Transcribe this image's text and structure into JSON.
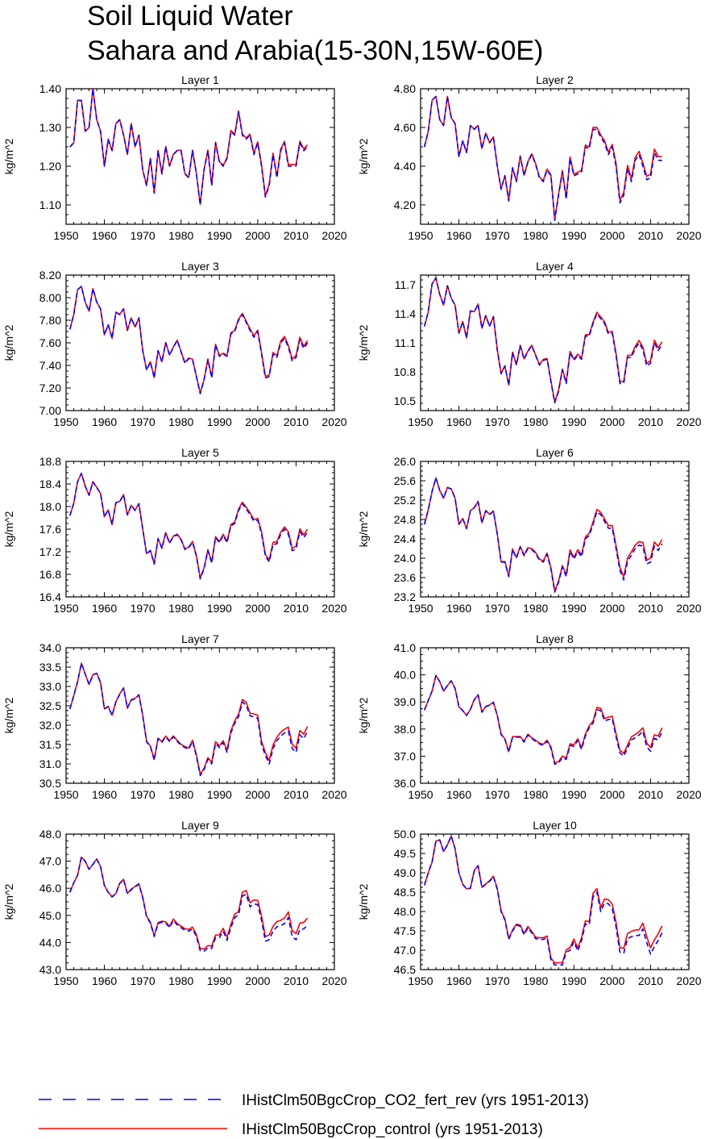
{
  "title_line1": "Soil Liquid Water",
  "title_line2": "Sahara and Arabia(15-30N,15W-60E)",
  "legend": {
    "items": [
      {
        "label": "IHistClm50BgcCrop_CO2_fert_rev (yrs 1951-2013)",
        "color": "#0000ff",
        "style": "dashed"
      },
      {
        "label": "IHistClm50BgcCrop_control (yrs 1951-2013)",
        "color": "#ff0000",
        "style": "solid"
      }
    ]
  },
  "chart_data": [
    {
      "type": "line",
      "title": "Layer 1",
      "ylabel": "kg/m^2",
      "xlim": [
        1950,
        2020
      ],
      "xticks": [
        1950,
        1960,
        1970,
        1980,
        1990,
        2000,
        2010,
        2020
      ],
      "ylim": [
        1.05,
        1.4
      ],
      "yticks": [
        1.1,
        1.2,
        1.3,
        1.4
      ],
      "ydec": 2,
      "x_start": 1951,
      "base": [
        1.25,
        1.26,
        1.37,
        1.37,
        1.29,
        1.3,
        1.4,
        1.32,
        1.29,
        1.2,
        1.27,
        1.24,
        1.31,
        1.32,
        1.28,
        1.23,
        1.31,
        1.25,
        1.28,
        1.19,
        1.15,
        1.22,
        1.13,
        1.24,
        1.18,
        1.25,
        1.2,
        1.23,
        1.24,
        1.24,
        1.18,
        1.17,
        1.24,
        1.18,
        1.1,
        1.19,
        1.24,
        1.15,
        1.26,
        1.21,
        1.2,
        1.22,
        1.29,
        1.28,
        1.34,
        1.28,
        1.27,
        1.28,
        1.23,
        1.26,
        1.2,
        1.12,
        1.15,
        1.23,
        1.17,
        1.24,
        1.26,
        1.2,
        1.2,
        1.2,
        1.26,
        1.24,
        1.25
      ],
      "control_offset": [
        0,
        0.005
      ],
      "fert_offset": [
        0,
        0
      ]
    },
    {
      "type": "line",
      "title": "Layer 2",
      "ylabel": "kg/m^2",
      "xlim": [
        1950,
        2020
      ],
      "xticks": [
        1950,
        1960,
        1970,
        1980,
        1990,
        2000,
        2010,
        2020
      ],
      "ylim": [
        4.1,
        4.8
      ],
      "yticks": [
        4.2,
        4.4,
        4.6,
        4.8
      ],
      "ydec": 2,
      "x_start": 1951,
      "base": [
        4.5,
        4.58,
        4.74,
        4.76,
        4.64,
        4.61,
        4.76,
        4.65,
        4.62,
        4.45,
        4.53,
        4.47,
        4.61,
        4.59,
        4.61,
        4.49,
        4.57,
        4.52,
        4.55,
        4.4,
        4.28,
        4.35,
        4.22,
        4.39,
        4.32,
        4.45,
        4.35,
        4.42,
        4.46,
        4.41,
        4.34,
        4.32,
        4.38,
        4.35,
        4.12,
        4.25,
        4.37,
        4.23,
        4.44,
        4.35,
        4.36,
        4.37,
        4.5,
        4.49,
        4.59,
        4.59,
        4.55,
        4.52,
        4.46,
        4.5,
        4.4,
        4.21,
        4.25,
        4.39,
        4.32,
        4.43,
        4.46,
        4.4,
        4.33,
        4.34,
        4.47,
        4.43,
        4.43
      ],
      "control_offset": [
        0,
        0.02
      ],
      "fert_offset": [
        0,
        0
      ]
    },
    {
      "type": "line",
      "title": "Layer 3",
      "ylabel": "kg/m^2",
      "xlim": [
        1950,
        2020
      ],
      "xticks": [
        1950,
        1960,
        1970,
        1980,
        1990,
        2000,
        2010,
        2020
      ],
      "ylim": [
        7.0,
        8.2
      ],
      "yticks": [
        7.0,
        7.2,
        7.4,
        7.6,
        7.8,
        8.0,
        8.2
      ],
      "ydec": 2,
      "x_start": 1951,
      "base": [
        7.72,
        7.85,
        8.07,
        8.1,
        7.96,
        7.88,
        8.08,
        7.96,
        7.9,
        7.67,
        7.76,
        7.64,
        7.87,
        7.85,
        7.9,
        7.71,
        7.82,
        7.74,
        7.82,
        7.53,
        7.36,
        7.43,
        7.29,
        7.53,
        7.43,
        7.6,
        7.49,
        7.56,
        7.62,
        7.52,
        7.42,
        7.46,
        7.45,
        7.3,
        7.15,
        7.27,
        7.45,
        7.29,
        7.58,
        7.48,
        7.5,
        7.48,
        7.68,
        7.7,
        7.8,
        7.85,
        7.78,
        7.71,
        7.65,
        7.7,
        7.5,
        7.29,
        7.3,
        7.5,
        7.47,
        7.6,
        7.64,
        7.56,
        7.44,
        7.47,
        7.63,
        7.55,
        7.6
      ],
      "control_offset": [
        0,
        0.02
      ],
      "fert_offset": [
        0,
        0
      ]
    },
    {
      "type": "line",
      "title": "Layer 4",
      "ylabel": "kg/m^2",
      "xlim": [
        1950,
        2020
      ],
      "xticks": [
        1950,
        1960,
        1970,
        1980,
        1990,
        2000,
        2010,
        2020
      ],
      "ylim": [
        10.4,
        11.8
      ],
      "yticks": [
        10.5,
        10.8,
        11.1,
        11.4,
        11.7
      ],
      "ydec": 1,
      "x_start": 1951,
      "base": [
        11.27,
        11.42,
        11.71,
        11.77,
        11.6,
        11.49,
        11.69,
        11.56,
        11.49,
        11.2,
        11.32,
        11.15,
        11.43,
        11.42,
        11.5,
        11.25,
        11.38,
        11.27,
        11.37,
        11.03,
        10.78,
        10.86,
        10.66,
        11.0,
        10.87,
        11.07,
        10.93,
        11.01,
        11.07,
        10.97,
        10.87,
        10.92,
        10.93,
        10.7,
        10.48,
        10.6,
        10.82,
        10.68,
        11.0,
        10.92,
        10.97,
        10.93,
        11.17,
        11.17,
        11.3,
        11.4,
        11.35,
        11.3,
        11.19,
        11.2,
        10.97,
        10.68,
        10.68,
        10.95,
        10.95,
        11.04,
        11.1,
        11.03,
        10.86,
        10.89,
        11.1,
        11.02,
        11.08
      ],
      "control_offset": [
        0,
        0.03
      ],
      "fert_offset": [
        0,
        0
      ]
    },
    {
      "type": "line",
      "title": "Layer 5",
      "ylabel": "kg/m^2",
      "xlim": [
        1950,
        2020
      ],
      "xticks": [
        1950,
        1960,
        1970,
        1980,
        1990,
        2000,
        2010,
        2020
      ],
      "ylim": [
        16.4,
        18.8
      ],
      "yticks": [
        16.4,
        16.8,
        17.2,
        17.6,
        18.0,
        18.4,
        18.8
      ],
      "ydec": 1,
      "x_start": 1951,
      "base": [
        17.84,
        18.06,
        18.44,
        18.59,
        18.36,
        18.2,
        18.44,
        18.34,
        18.23,
        17.82,
        17.94,
        17.68,
        18.07,
        18.09,
        18.21,
        17.85,
        18.02,
        17.93,
        18.05,
        17.6,
        17.16,
        17.22,
        16.98,
        17.43,
        17.26,
        17.53,
        17.35,
        17.47,
        17.5,
        17.41,
        17.24,
        17.27,
        17.37,
        17.12,
        16.72,
        16.9,
        17.22,
        17.0,
        17.45,
        17.36,
        17.49,
        17.36,
        17.66,
        17.7,
        17.93,
        18.05,
        17.96,
        17.86,
        17.74,
        17.76,
        17.52,
        17.12,
        17.02,
        17.33,
        17.34,
        17.51,
        17.6,
        17.51,
        17.22,
        17.25,
        17.56,
        17.45,
        17.55
      ],
      "control_offset": [
        0,
        0.05
      ],
      "fert_offset": [
        0,
        0
      ]
    },
    {
      "type": "line",
      "title": "Layer 6",
      "ylabel": "kg/m^2",
      "xlim": [
        1950,
        2020
      ],
      "xticks": [
        1950,
        1960,
        1970,
        1980,
        1990,
        2000,
        2010,
        2020
      ],
      "ylim": [
        23.2,
        26.0
      ],
      "yticks": [
        23.2,
        23.6,
        24.0,
        24.4,
        24.8,
        25.2,
        25.6,
        26.0
      ],
      "ydec": 1,
      "x_start": 1951,
      "base": [
        24.7,
        25.0,
        25.38,
        25.66,
        25.4,
        25.24,
        25.46,
        25.43,
        25.24,
        24.7,
        24.82,
        24.61,
        24.98,
        25.04,
        25.17,
        24.73,
        24.98,
        24.9,
        24.97,
        24.5,
        23.92,
        23.92,
        23.62,
        24.18,
        24.0,
        24.23,
        24.05,
        24.2,
        24.18,
        24.1,
        23.96,
        23.92,
        24.08,
        23.78,
        23.3,
        23.5,
        23.82,
        23.62,
        24.14,
        23.98,
        24.14,
        24.03,
        24.4,
        24.47,
        24.7,
        24.96,
        24.9,
        24.76,
        24.62,
        24.62,
        24.2,
        23.75,
        23.55,
        23.94,
        24.06,
        24.2,
        24.27,
        24.25,
        23.88,
        23.92,
        24.25,
        24.16,
        24.3
      ],
      "control_offset": [
        0,
        0.09
      ],
      "fert_offset": [
        0,
        0
      ]
    },
    {
      "type": "line",
      "title": "Layer 7",
      "ylabel": "kg/m^2",
      "xlim": [
        1950,
        2020
      ],
      "xticks": [
        1950,
        1960,
        1970,
        1980,
        1990,
        2000,
        2010,
        2020
      ],
      "ylim": [
        30.5,
        34.0
      ],
      "yticks": [
        30.5,
        31.0,
        31.5,
        32.0,
        32.5,
        33.0,
        33.5,
        34.0
      ],
      "ydec": 1,
      "x_start": 1951,
      "base": [
        32.42,
        32.76,
        33.12,
        33.6,
        33.32,
        33.05,
        33.3,
        33.34,
        33.1,
        32.42,
        32.48,
        32.25,
        32.6,
        32.8,
        32.96,
        32.44,
        32.65,
        32.68,
        32.78,
        32.25,
        31.57,
        31.45,
        31.1,
        31.65,
        31.56,
        31.7,
        31.58,
        31.7,
        31.58,
        31.48,
        31.42,
        31.38,
        31.58,
        31.2,
        30.7,
        30.85,
        31.12,
        31.0,
        31.53,
        31.42,
        31.55,
        31.3,
        31.8,
        32.05,
        32.22,
        32.6,
        32.52,
        32.24,
        32.22,
        32.18,
        31.5,
        31.22,
        31.0,
        31.4,
        31.6,
        31.72,
        31.8,
        31.85,
        31.4,
        31.3,
        31.75,
        31.65,
        31.85
      ],
      "control_offset": [
        0,
        0.12
      ],
      "fert_offset": [
        0,
        0
      ]
    },
    {
      "type": "line",
      "title": "Layer 8",
      "ylabel": "kg/m^2",
      "xlim": [
        1950,
        2020
      ],
      "xticks": [
        1950,
        1960,
        1970,
        1980,
        1990,
        2000,
        2010,
        2020
      ],
      "ylim": [
        36.0,
        41.0
      ],
      "yticks": [
        36.0,
        37.0,
        38.0,
        39.0,
        40.0,
        41.0
      ],
      "ydec": 1,
      "x_start": 1951,
      "base": [
        38.7,
        39.05,
        39.4,
        39.98,
        39.75,
        39.4,
        39.6,
        39.78,
        39.5,
        38.82,
        38.68,
        38.5,
        38.72,
        39.08,
        39.26,
        38.62,
        38.82,
        38.88,
        38.98,
        38.5,
        37.8,
        37.62,
        37.15,
        37.7,
        37.7,
        37.7,
        37.52,
        37.78,
        37.65,
        37.55,
        37.45,
        37.4,
        37.55,
        37.3,
        36.7,
        36.75,
        36.95,
        36.88,
        37.4,
        37.36,
        37.58,
        37.25,
        37.75,
        38.05,
        38.22,
        38.72,
        38.68,
        38.3,
        38.35,
        38.38,
        37.72,
        37.12,
        37.0,
        37.3,
        37.6,
        37.68,
        37.78,
        37.92,
        37.35,
        37.18,
        37.65,
        37.6,
        37.9
      ],
      "control_offset": [
        0,
        0.15
      ],
      "fert_offset": [
        0,
        0
      ]
    },
    {
      "type": "line",
      "title": "Layer 9",
      "ylabel": "kg/m^2",
      "xlim": [
        1950,
        2020
      ],
      "xticks": [
        1950,
        1960,
        1970,
        1980,
        1990,
        2000,
        2010,
        2020
      ],
      "ylim": [
        43.0,
        48.0
      ],
      "yticks": [
        43.0,
        44.0,
        45.0,
        46.0,
        47.0,
        48.0
      ],
      "ydec": 1,
      "x_start": 1951,
      "base": [
        45.85,
        46.2,
        46.48,
        47.15,
        47.0,
        46.7,
        46.88,
        47.08,
        46.8,
        46.1,
        45.85,
        45.68,
        45.8,
        46.18,
        46.32,
        45.8,
        45.95,
        46.05,
        46.15,
        45.65,
        44.95,
        44.72,
        44.22,
        44.7,
        44.75,
        44.72,
        44.55,
        44.82,
        44.65,
        44.55,
        44.45,
        44.42,
        44.5,
        44.22,
        43.7,
        43.68,
        43.8,
        43.78,
        44.18,
        44.18,
        44.42,
        44.08,
        44.55,
        44.92,
        45.02,
        45.72,
        45.78,
        45.32,
        45.42,
        45.4,
        44.82,
        44.05,
        44.1,
        44.42,
        44.58,
        44.62,
        44.7,
        44.92,
        44.22,
        44.1,
        44.48,
        44.5,
        44.65
      ],
      "control_offset": [
        0,
        0.25
      ],
      "fert_offset": [
        0,
        0
      ]
    },
    {
      "type": "line",
      "title": "Layer 10",
      "ylabel": "kg/m^2",
      "xlim": [
        1950,
        2020
      ],
      "xticks": [
        1950,
        1960,
        1970,
        1980,
        1990,
        2000,
        2010,
        2020
      ],
      "ylim": [
        46.5,
        50.0
      ],
      "yticks": [
        46.5,
        47.0,
        47.5,
        48.0,
        48.5,
        49.0,
        49.5,
        50.0
      ],
      "ydec": 1,
      "x_start": 1951,
      "base": [
        48.68,
        49.0,
        49.28,
        49.82,
        49.85,
        49.55,
        49.72,
        49.95,
        49.62,
        49.0,
        48.7,
        48.58,
        48.6,
        49.05,
        49.18,
        48.62,
        48.7,
        48.78,
        48.9,
        48.58,
        48.0,
        47.78,
        47.28,
        47.5,
        47.65,
        47.62,
        47.4,
        47.58,
        47.45,
        47.3,
        47.28,
        47.28,
        47.32,
        46.75,
        46.62,
        46.62,
        46.62,
        46.95,
        47.0,
        47.22,
        46.98,
        47.25,
        47.68,
        47.65,
        48.38,
        48.5,
        48.0,
        48.22,
        48.2,
        48.08,
        47.6,
        46.95,
        46.92,
        47.3,
        47.35,
        47.38,
        47.38,
        47.55,
        47.2,
        46.9,
        47.1,
        47.25,
        47.45
      ],
      "control_offset": [
        0,
        0.18
      ],
      "fert_offset": [
        0,
        0
      ]
    }
  ]
}
